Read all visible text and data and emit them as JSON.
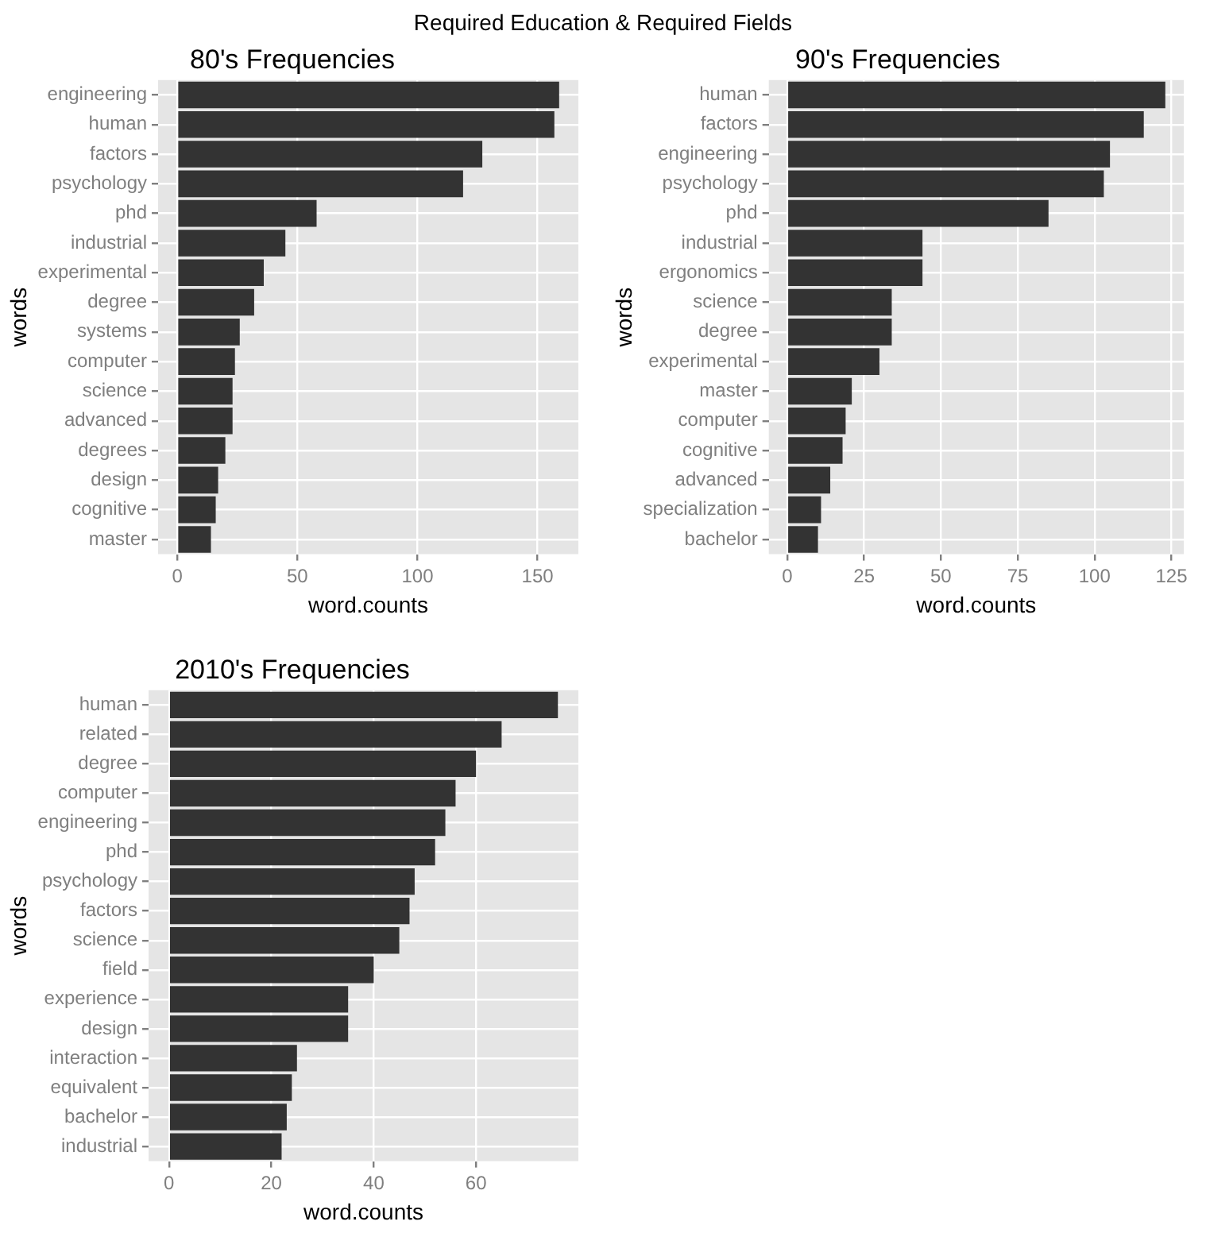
{
  "chart_data": [
    {
      "type": "bar",
      "orientation": "horizontal",
      "title": "80's Frequencies",
      "xlabel": "word.counts",
      "ylabel": "words",
      "annotations": [
        "Required Education & Required Fields"
      ],
      "categories": [
        "engineering",
        "human",
        "factors",
        "psychology",
        "phd",
        "industrial",
        "experimental",
        "degree",
        "systems",
        "computer",
        "science",
        "advanced",
        "degrees",
        "design",
        "cognitive",
        "master"
      ],
      "values": [
        159,
        157,
        127,
        119,
        58,
        45,
        36,
        32,
        26,
        24,
        23,
        23,
        20,
        17,
        16,
        14
      ],
      "color": "#333333",
      "xlim": [
        -8,
        167
      ],
      "xticks": [
        0,
        50,
        100,
        150
      ],
      "grid": true
    },
    {
      "type": "bar",
      "orientation": "horizontal",
      "title": "90's Frequencies",
      "xlabel": "word.counts",
      "ylabel": "words",
      "categories": [
        "human",
        "factors",
        "engineering",
        "psychology",
        "phd",
        "industrial",
        "ergonomics",
        "science",
        "degree",
        "experimental",
        "master",
        "computer",
        "cognitive",
        "advanced",
        "specialization",
        "bachelor"
      ],
      "values": [
        123,
        116,
        105,
        103,
        85,
        44,
        44,
        34,
        34,
        30,
        21,
        19,
        18,
        14,
        11,
        10
      ],
      "color": "#333333",
      "xlim": [
        -6,
        129
      ],
      "xticks": [
        0,
        25,
        50,
        75,
        100,
        125
      ],
      "grid": true
    },
    {
      "type": "bar",
      "orientation": "horizontal",
      "title": "2010's Frequencies",
      "xlabel": "word.counts",
      "ylabel": "words",
      "categories": [
        "human",
        "related",
        "degree",
        "computer",
        "engineering",
        "phd",
        "psychology",
        "factors",
        "science",
        "field",
        "experience",
        "design",
        "interaction",
        "equivalent",
        "bachelor",
        "industrial"
      ],
      "values": [
        76,
        65,
        60,
        56,
        54,
        52,
        48,
        47,
        45,
        40,
        35,
        35,
        25,
        24,
        23,
        22
      ],
      "color": "#333333",
      "xlim": [
        -4,
        80
      ],
      "xticks": [
        0,
        20,
        40,
        60
      ],
      "grid": true
    }
  ]
}
